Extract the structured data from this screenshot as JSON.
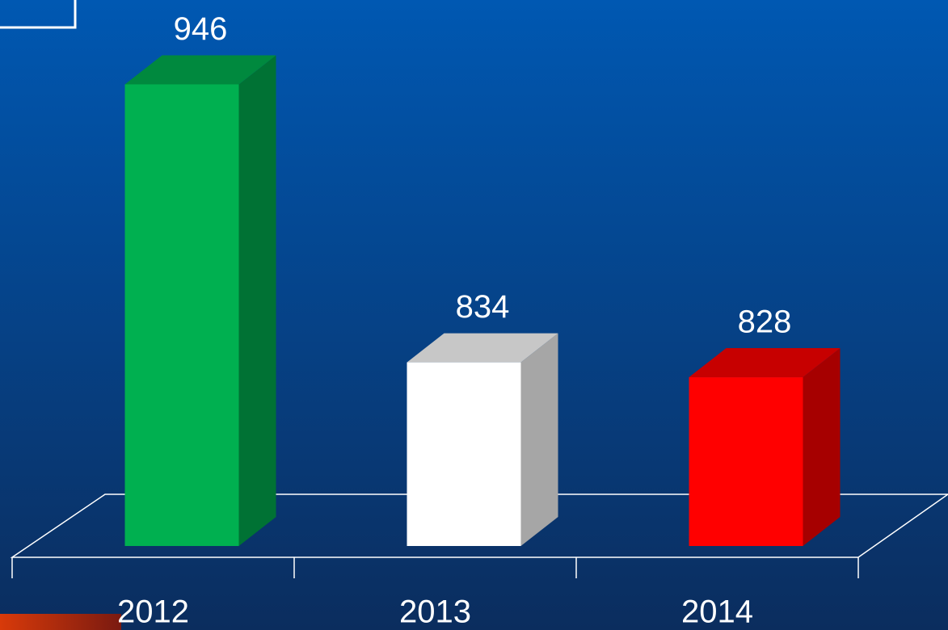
{
  "chart_data": {
    "type": "bar3d",
    "categories": [
      "2012",
      "2013",
      "2014"
    ],
    "values": [
      946,
      834,
      828
    ],
    "colors": [
      "#00b050",
      "#ffffff",
      "#ff0000"
    ],
    "ylim": [
      760,
      980
    ]
  }
}
